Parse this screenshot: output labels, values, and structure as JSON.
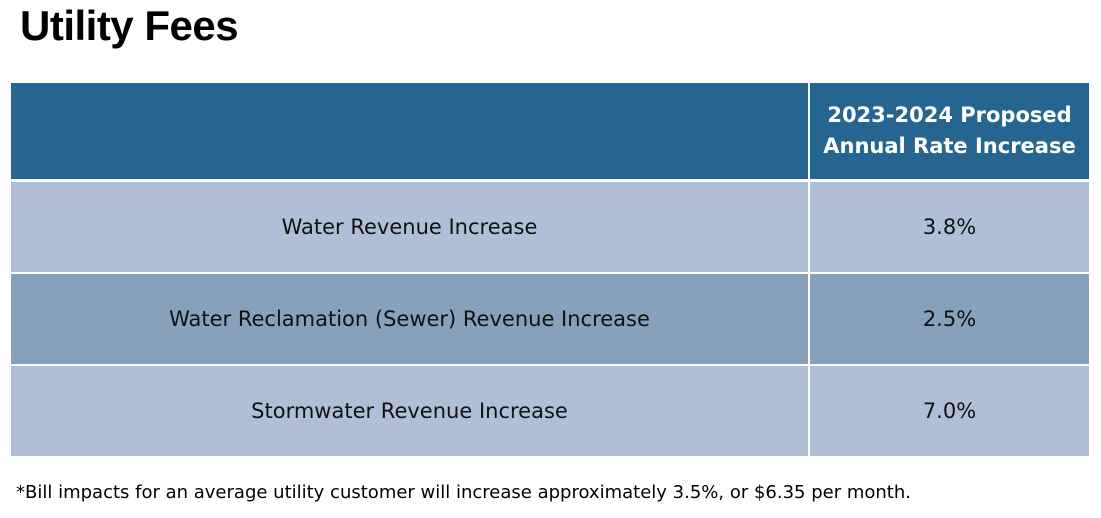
{
  "title": "Utility Fees",
  "table": {
    "header": {
      "label_column": "",
      "value_column_line1": "2023-2024 Proposed",
      "value_column_line2": "Annual Rate Increase"
    },
    "rows": [
      {
        "label": "Water Revenue Increase",
        "value": "3.8%"
      },
      {
        "label": "Water Reclamation (Sewer) Revenue Increase",
        "value": "2.5%"
      },
      {
        "label": "Stormwater Revenue Increase",
        "value": "7.0%"
      }
    ]
  },
  "footnote": "*Bill impacts for an average utility customer will increase approximately 3.5%, or $6.35 per month.",
  "colors": {
    "header_bg": "#25658f",
    "row_light": "#b1bfd6",
    "row_dark": "#87a0bb"
  }
}
